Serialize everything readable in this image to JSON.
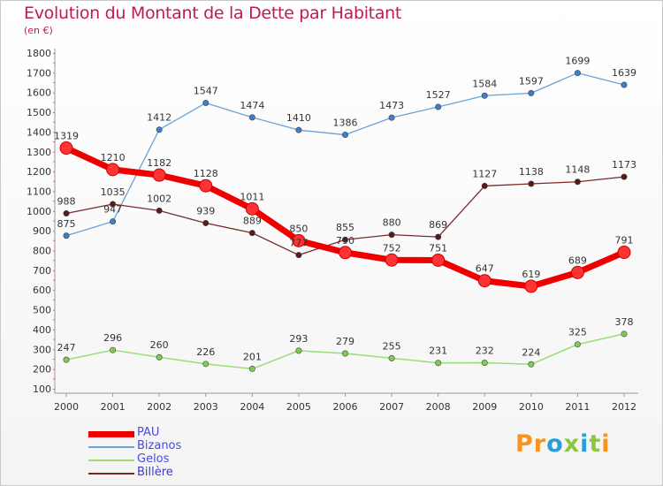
{
  "title": "Evolution du Montant de la Dette par Habitant",
  "subtitle": "(en €)",
  "logo": {
    "text": "Proxiti",
    "letters": [
      "P",
      "r",
      "o",
      "x",
      "i",
      "t",
      "i"
    ],
    "colors": [
      "#f7941d",
      "#f7941d",
      "#2a9fd6",
      "#8dc63f",
      "#2a9fd6",
      "#8dc63f",
      "#f7941d"
    ]
  },
  "chart_data": {
    "type": "line",
    "title": "Evolution du Montant de la Dette par Habitant",
    "ylabel": "(en €)",
    "xlabel": "",
    "categories": [
      "2000",
      "2001",
      "2002",
      "2003",
      "2004",
      "2005",
      "2006",
      "2007",
      "2008",
      "2009",
      "2010",
      "2011",
      "2012"
    ],
    "ylim": [
      100,
      1800
    ],
    "yticks": [
      100,
      200,
      300,
      400,
      500,
      600,
      700,
      800,
      900,
      1000,
      1100,
      1200,
      1300,
      1400,
      1500,
      1600,
      1700,
      1800
    ],
    "grid": false,
    "legend": "bottom-left",
    "series": [
      {
        "name": "PAU",
        "color": "#ee0000",
        "markerColor": "#ff3333",
        "width": 7,
        "marker": 7,
        "values": [
          1319,
          1210,
          1182,
          1128,
          1011,
          850,
          790,
          752,
          751,
          647,
          619,
          689,
          791
        ]
      },
      {
        "name": "Bizanos",
        "color": "#6aa3d8",
        "markerColor": "#3d7fc8",
        "width": 1.3,
        "marker": 3.2,
        "values": [
          875,
          947,
          1412,
          1547,
          1474,
          1410,
          1386,
          1473,
          1527,
          1584,
          1597,
          1699,
          1639
        ]
      },
      {
        "name": "Gelos",
        "color": "#99dd77",
        "markerColor": "#7fcc55",
        "width": 1.5,
        "marker": 3.2,
        "values": [
          247,
          296,
          260,
          226,
          201,
          293,
          279,
          255,
          231,
          232,
          224,
          325,
          378
        ]
      },
      {
        "name": "Billère",
        "color": "#7a2a2a",
        "markerColor": "#5a1a1a",
        "width": 1.3,
        "marker": 3.2,
        "values": [
          988,
          1035,
          1002,
          939,
          889,
          777,
          855,
          880,
          869,
          1127,
          1138,
          1148,
          1173
        ]
      }
    ]
  }
}
